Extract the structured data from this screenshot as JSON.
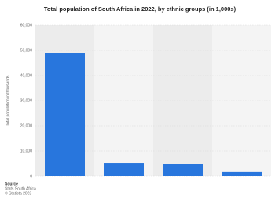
{
  "chart_data": {
    "type": "bar",
    "title": "Total population of South Africa in 2022, by ethnic groups (in 1,000s)",
    "y_label": "Total population in thousands",
    "categories": [
      null,
      null,
      null,
      null
    ],
    "values": [
      49000,
      5300,
      4700,
      1600
    ],
    "color": "#2876dd",
    "ylim": [
      0,
      60000
    ],
    "yticks": [
      0,
      {
        "value": 10000,
        "label": "10,000"
      },
      {
        "value": 20000,
        "label": "20,000"
      },
      {
        "value": 30000,
        "label": "30,000"
      },
      {
        "value": 40000,
        "label": "40,000"
      },
      {
        "value": 50000,
        "label": "50,000"
      },
      {
        "value": 60000,
        "label": "60,000"
      }
    ],
    "grid": true,
    "source": {
      "heading": "Source",
      "lines": [
        "Stats South Africa",
        "© Statista 2023"
      ]
    }
  }
}
